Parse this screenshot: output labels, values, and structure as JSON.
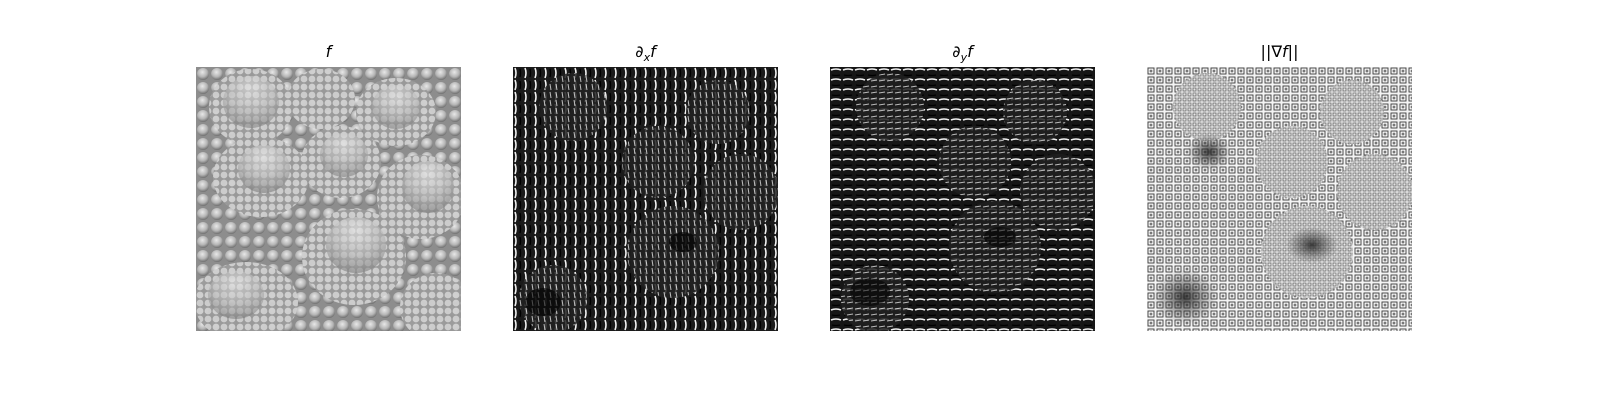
{
  "figure": {
    "panels": [
      {
        "title": "f",
        "kind": "original"
      },
      {
        "title": "∂xf",
        "kind": "x-derivative"
      },
      {
        "title": "∂yf",
        "kind": "y-derivative"
      },
      {
        "title": "||∇f||",
        "kind": "gradient-magnitude"
      }
    ]
  }
}
